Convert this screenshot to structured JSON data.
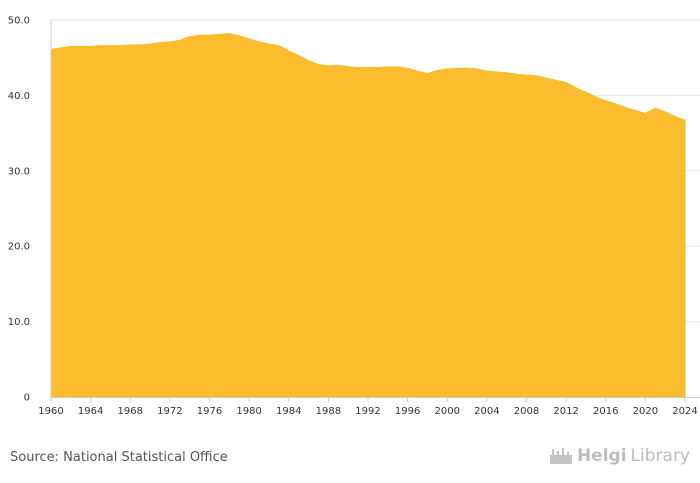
{
  "colors": {
    "area": "#fbbc2d",
    "grid": "#e6e6e6",
    "axis": "#cccccc",
    "text": "#333333"
  },
  "chart_data": {
    "type": "area",
    "title": "",
    "xlabel": "",
    "ylabel": "",
    "xlim": [
      1960,
      2024
    ],
    "ylim": [
      0,
      50
    ],
    "y_ticks": [
      0,
      10,
      20,
      30,
      40,
      50
    ],
    "y_tick_labels": [
      "0",
      "10.0",
      "20.0",
      "30.0",
      "40.0",
      "50.0"
    ],
    "x_ticks": [
      1960,
      1964,
      1968,
      1972,
      1976,
      1980,
      1984,
      1988,
      1992,
      1996,
      2000,
      2004,
      2008,
      2012,
      2016,
      2020,
      2024
    ],
    "x_tick_labels": [
      "1960",
      "1964",
      "1968",
      "1972",
      "1976",
      "1980",
      "1984",
      "1988",
      "1992",
      "1996",
      "2000",
      "2004",
      "2008",
      "2012",
      "2016",
      "2020",
      "2024"
    ],
    "grid": true,
    "legend": "none",
    "x": [
      1960,
      1961,
      1962,
      1963,
      1964,
      1965,
      1966,
      1967,
      1968,
      1969,
      1970,
      1971,
      1972,
      1973,
      1974,
      1975,
      1976,
      1977,
      1978,
      1979,
      1980,
      1981,
      1982,
      1983,
      1984,
      1985,
      1986,
      1987,
      1988,
      1989,
      1990,
      1991,
      1992,
      1993,
      1994,
      1995,
      1996,
      1997,
      1998,
      1999,
      2000,
      2001,
      2002,
      2003,
      2004,
      2005,
      2006,
      2007,
      2008,
      2009,
      2010,
      2011,
      2012,
      2013,
      2014,
      2015,
      2016,
      2017,
      2018,
      2019,
      2020,
      2021,
      2022,
      2023,
      2024
    ],
    "series": [
      {
        "values": [
          46.1,
          46.3,
          46.5,
          46.5,
          46.5,
          46.6,
          46.6,
          46.6,
          46.7,
          46.7,
          46.8,
          47.0,
          47.1,
          47.3,
          47.8,
          48.0,
          48.0,
          48.1,
          48.2,
          47.9,
          47.5,
          47.1,
          46.8,
          46.6,
          45.9,
          45.3,
          44.6,
          44.1,
          43.9,
          44.0,
          43.8,
          43.7,
          43.7,
          43.7,
          43.8,
          43.8,
          43.6,
          43.2,
          42.9,
          43.3,
          43.5,
          43.6,
          43.6,
          43.5,
          43.2,
          43.1,
          43.0,
          42.8,
          42.7,
          42.6,
          42.3,
          42.0,
          41.7,
          41.0,
          40.4,
          39.8,
          39.3,
          38.9,
          38.4,
          38.0,
          37.6,
          38.3,
          37.8,
          37.2,
          36.7
        ]
      }
    ]
  },
  "footer": {
    "source": "Source: National Statistical Office",
    "brand_a": "Helgi",
    "brand_b": "Library"
  }
}
